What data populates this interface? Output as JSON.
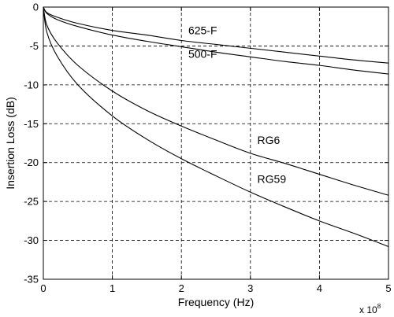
{
  "chart_data": {
    "type": "line",
    "xlabel": "Frequency (Hz)",
    "ylabel": "Insertion Loss (dB)",
    "x_multiplier_label": "x 10",
    "x_multiplier_exponent": "8",
    "xlim": [
      0,
      5
    ],
    "ylim": [
      -35,
      0
    ],
    "xticks": [
      0,
      1,
      2,
      3,
      4,
      5
    ],
    "yticks": [
      0,
      -5,
      -10,
      -15,
      -20,
      -25,
      -30,
      -35
    ],
    "grid": true,
    "grid_style": "dashed",
    "line_color": "#000000",
    "series": [
      {
        "name": "625-F",
        "x": [
          0,
          0.05,
          0.2,
          0.5,
          1,
          1.5,
          2,
          2.5,
          3,
          3.5,
          4,
          4.5,
          5
        ],
        "y": [
          0,
          -0.7,
          -1.3,
          -2.1,
          -3.0,
          -3.6,
          -4.3,
          -4.8,
          -5.3,
          -5.8,
          -6.3,
          -6.8,
          -7.2
        ]
      },
      {
        "name": "500-F",
        "x": [
          0,
          0.05,
          0.2,
          0.5,
          1,
          1.5,
          2,
          2.5,
          3,
          3.5,
          4,
          4.5,
          5
        ],
        "y": [
          0,
          -0.8,
          -1.6,
          -2.5,
          -3.6,
          -4.4,
          -5.1,
          -5.8,
          -6.4,
          -7.0,
          -7.5,
          -8.1,
          -8.6
        ]
      },
      {
        "name": "RG6",
        "x": [
          0,
          0.05,
          0.2,
          0.5,
          1,
          1.5,
          2,
          2.5,
          3,
          3.5,
          4,
          4.5,
          5
        ],
        "y": [
          0,
          -2.3,
          -4.6,
          -7.5,
          -10.8,
          -13.3,
          -15.3,
          -17.1,
          -18.8,
          -20.1,
          -21.5,
          -22.9,
          -24.2
        ]
      },
      {
        "name": "RG59",
        "x": [
          0,
          0.05,
          0.2,
          0.5,
          1,
          1.5,
          2,
          2.5,
          3,
          3.5,
          4,
          4.5,
          5
        ],
        "y": [
          0,
          -3.2,
          -6.3,
          -10.0,
          -14.0,
          -17.0,
          -19.5,
          -21.7,
          -23.8,
          -25.7,
          -27.5,
          -29.1,
          -30.8
        ]
      }
    ],
    "annotations": [
      {
        "text": "625-F",
        "x": 2.1,
        "y": -3.5
      },
      {
        "text": "500-F",
        "x": 2.1,
        "y": -6.5
      },
      {
        "text": "RG6",
        "x": 3.1,
        "y": -17.6
      },
      {
        "text": "RG59",
        "x": 3.1,
        "y": -22.6
      }
    ]
  }
}
